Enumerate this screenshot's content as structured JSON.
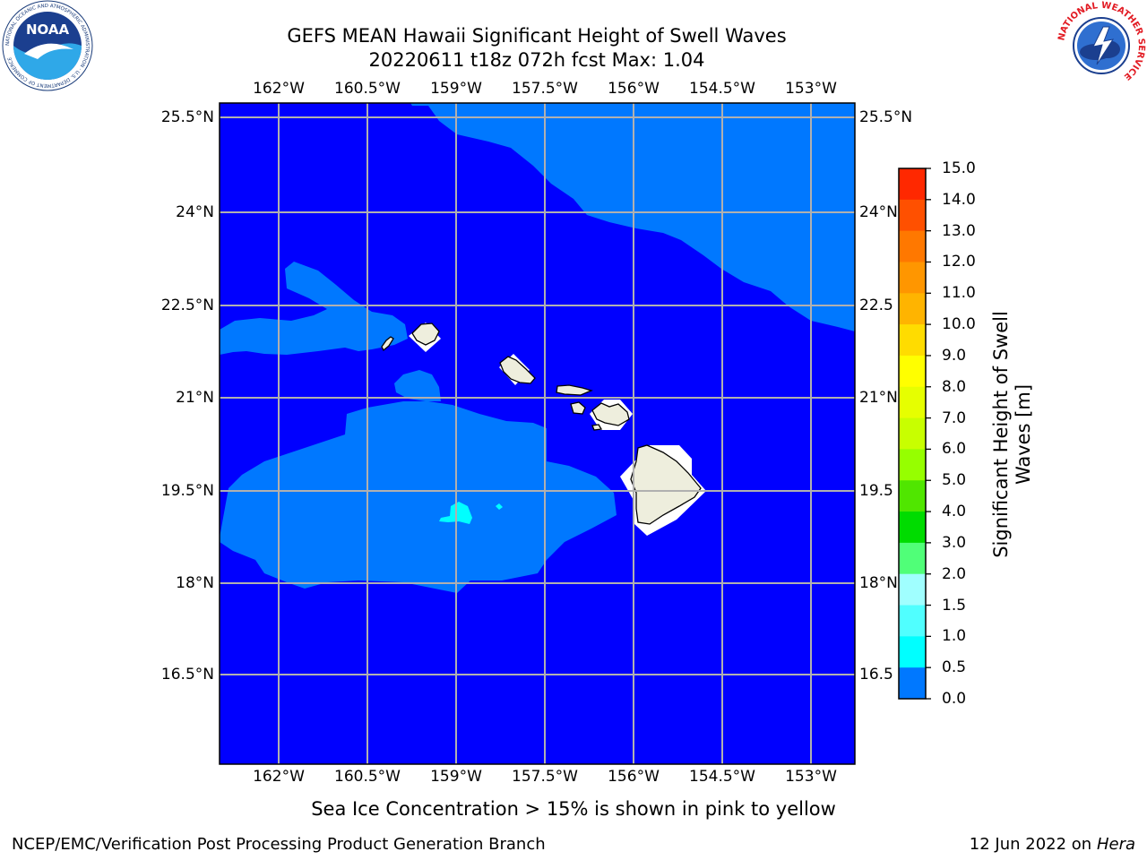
{
  "title": {
    "line1": "GEFS MEAN Hawaii Significant Height of Swell Waves",
    "line2": "20220611 t18z 072h fcst   Max: 1.04"
  },
  "map": {
    "lon_ticks": [
      "162°W",
      "160.5°W",
      "159°W",
      "157.5°W",
      "156°W",
      "154.5°W",
      "153°W"
    ],
    "lat_ticks": [
      "25.5°N",
      "24°N",
      "22.5°N",
      "21°N",
      "19.5°N",
      "18°N",
      "16.5°N"
    ],
    "lat_ticks_right": [
      "25.5°N",
      "24°N",
      "22.5",
      "21°N",
      "19.5",
      "18°N",
      "16.5"
    ],
    "ocean_color": "#0000ff",
    "swell_0_5_color": "#0078ff",
    "swell_1_0_color": "#00ffff",
    "land_color": "#eeeedd",
    "grid_color": "#b0b0b0"
  },
  "colorbar": {
    "title_line1": "Significant Height of Swell",
    "title_line2": "Waves [m]",
    "labels": [
      "15.0",
      "14.0",
      "13.0",
      "12.0",
      "11.0",
      "10.0",
      "9.0",
      "8.0",
      "7.0",
      "6.0",
      "5.0",
      "4.0",
      "3.0",
      "2.0",
      "1.5",
      "1.0",
      "0.5",
      "0.0"
    ],
    "colors": [
      "#ff0000",
      "#ff2800",
      "#ff5000",
      "#ff7800",
      "#ff9600",
      "#ffb400",
      "#ffdc00",
      "#ffff00",
      "#e6ff00",
      "#c8ff00",
      "#96ff00",
      "#50e600",
      "#00dc00",
      "#50ff78",
      "#a0ffff",
      "#50ffff",
      "#00ffff",
      "#0078ff",
      "#0000ff"
    ]
  },
  "footnote": "Sea Ice Concentration > 15% is shown in pink to yellow",
  "credit_left": "NCEP/EMC/Verification Post Processing Product Generation Branch",
  "credit_right_date": "12 Jun 2022 on",
  "credit_right_host": "Hera",
  "logos": {
    "noaa_text": "NOAA",
    "noaa_ring_text": "NATIONAL OCEANIC AND ATMOSPHERIC ADMINISTRATION · U.S. DEPARTMENT OF COMMERCE",
    "nws_ring_text": "NATIONAL WEATHER SERVICE"
  }
}
